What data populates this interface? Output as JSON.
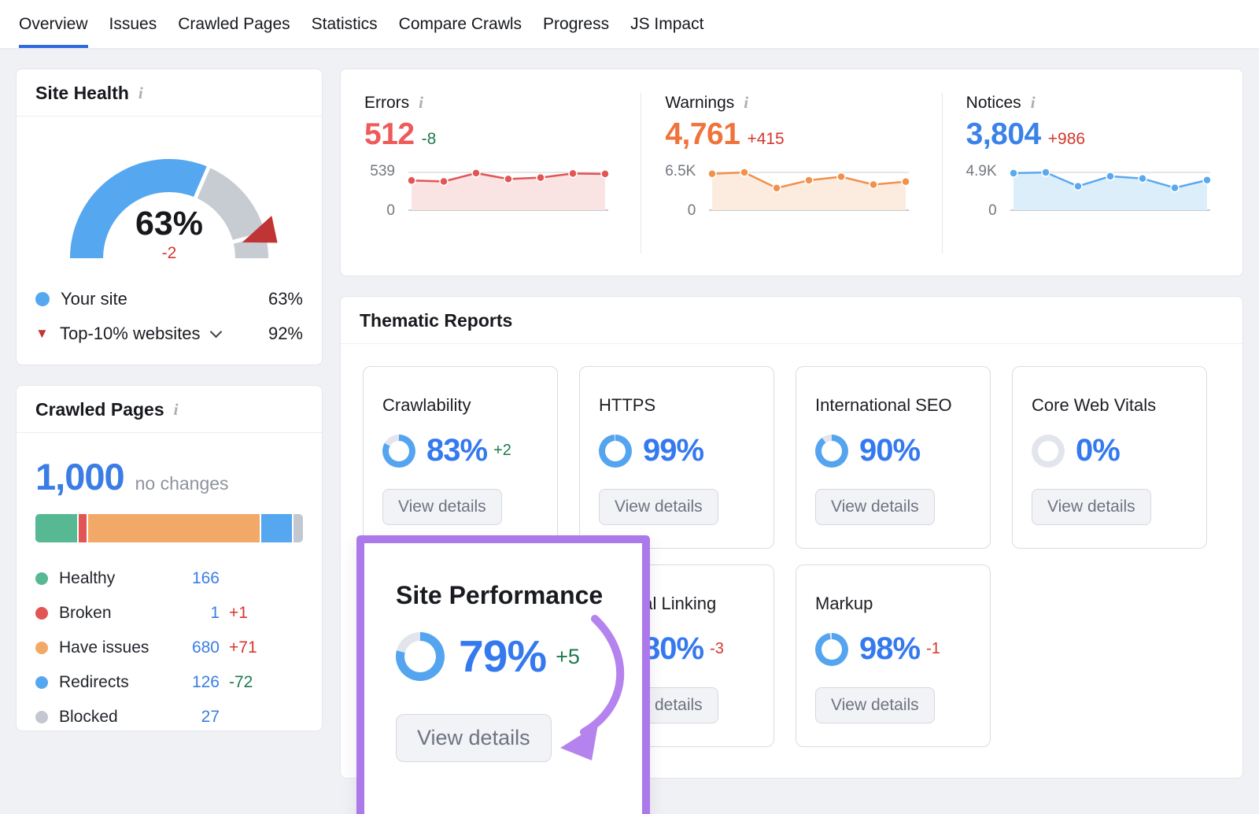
{
  "nav": {
    "tabs": [
      {
        "label": "Overview",
        "active": true
      },
      {
        "label": "Issues",
        "active": false
      },
      {
        "label": "Crawled Pages",
        "active": false
      },
      {
        "label": "Statistics",
        "active": false
      },
      {
        "label": "Compare Crawls",
        "active": false
      },
      {
        "label": "Progress",
        "active": false
      },
      {
        "label": "JS Impact",
        "active": false
      }
    ]
  },
  "site_health": {
    "title": "Site Health",
    "score": "63%",
    "delta": "-2",
    "legend": [
      {
        "label": "Your site",
        "value": "63%",
        "color": "#55a7f0"
      },
      {
        "label": "Top-10% websites",
        "value": "92%",
        "color": "#bf3535"
      }
    ]
  },
  "summary": {
    "errors": {
      "label": "Errors",
      "value": "512",
      "delta": "-8",
      "value_color": "#ee5a5a",
      "delta_color": "#1e7a4e",
      "ymax": "539",
      "ymin": "0"
    },
    "warnings": {
      "label": "Warnings",
      "value": "4,761",
      "delta": "+415",
      "value_color": "#f0733c",
      "delta_color": "#d4372e",
      "ymax": "6.5K",
      "ymin": "0"
    },
    "notices": {
      "label": "Notices",
      "value": "3,804",
      "delta": "+986",
      "value_color": "#3b82e8",
      "delta_color": "#d4372e",
      "ymax": "4.9K",
      "ymin": "0"
    }
  },
  "crawled_pages": {
    "title": "Crawled Pages",
    "total": "1,000",
    "total_note": "no changes",
    "legend": [
      {
        "label": "Healthy",
        "value": "166",
        "delta": "",
        "delta_color": "#1e7a4e",
        "color": "#57b894"
      },
      {
        "label": "Broken",
        "value": "1",
        "delta": "+1",
        "delta_color": "#d4372e",
        "color": "#e25555"
      },
      {
        "label": "Have issues",
        "value": "680",
        "delta": "+71",
        "delta_color": "#d4372e",
        "color": "#f2a968"
      },
      {
        "label": "Redirects",
        "value": "126",
        "delta": "-72",
        "delta_color": "#1e7a4e",
        "color": "#55a7f0"
      },
      {
        "label": "Blocked",
        "value": "27",
        "delta": "",
        "delta_color": "#1e7a4e",
        "color": "#c3c8d0"
      }
    ]
  },
  "thematic": {
    "title": "Thematic Reports",
    "view_details": "View details",
    "cards": [
      {
        "label": "Crawlability",
        "percent": "83%",
        "delta": "+2",
        "delta_color": "#1e7a4e",
        "donut": 83
      },
      {
        "label": "HTTPS",
        "percent": "99%",
        "delta": "",
        "delta_color": "#1e7a4e",
        "donut": 99
      },
      {
        "label": "International SEO",
        "percent": "90%",
        "delta": "",
        "delta_color": "#1e7a4e",
        "donut": 90
      },
      {
        "label": "Core Web Vitals",
        "percent": "0%",
        "delta": "",
        "delta_color": "#1e7a4e",
        "donut": 0
      },
      {
        "label": "Internal Linking",
        "percent": "80%",
        "delta": "-3",
        "delta_color": "#d4372e",
        "donut": 80
      },
      {
        "label": "Markup",
        "percent": "98%",
        "delta": "-1",
        "delta_color": "#d4372e",
        "donut": 98
      }
    ],
    "highlight": {
      "label": "Site Performance",
      "percent": "79%",
      "delta": "+5",
      "delta_color": "#1e7a4e",
      "donut": 79,
      "button": "View details",
      "accent": "#ab79e9"
    }
  },
  "chart_data": [
    {
      "id": "site_health_gauge",
      "type": "gauge",
      "unit": "%",
      "value": 63,
      "delta": -2,
      "benchmark_marker": 92,
      "series": [
        {
          "name": "Your site",
          "value": 63
        },
        {
          "name": "Top-10% websites",
          "value": 92
        }
      ],
      "arc_color": "#55a7f0",
      "track_color": "#c7ccd3",
      "marker_color": "#bf3535"
    },
    {
      "id": "errors_trend",
      "type": "area",
      "title": "Errors",
      "current": 512,
      "delta": -8,
      "ylim": [
        0,
        539
      ],
      "ymax_label": "539",
      "values": [
        425,
        410,
        529,
        445,
        465,
        523,
        518
      ],
      "line_color": "#e25555",
      "fill_color": "#fae3e3"
    },
    {
      "id": "warnings_trend",
      "type": "area",
      "title": "Warnings",
      "current": 4761,
      "delta": 415,
      "ylim": [
        0,
        6500
      ],
      "ymax_label": "6.5K",
      "values": [
        6250,
        6500,
        3800,
        5150,
        5750,
        4400,
        4900
      ],
      "line_color": "#f0914d",
      "fill_color": "#fcecdf"
    },
    {
      "id": "notices_trend",
      "type": "area",
      "title": "Notices",
      "current": 3804,
      "delta": 986,
      "ylim": [
        0,
        4900
      ],
      "ymax_label": "4.9K",
      "values": [
        4800,
        4900,
        3100,
        4400,
        4100,
        2900,
        3900
      ],
      "line_color": "#5aa9f0",
      "fill_color": "#ddeefb"
    },
    {
      "id": "crawled_pages_bar",
      "type": "stacked-bar",
      "total": 1000,
      "segments": [
        {
          "label": "Healthy",
          "value": 166,
          "color": "#57b894",
          "width_pct": 15.8
        },
        {
          "label": "Broken",
          "value": 1,
          "color": "#e25555",
          "width_pct": 3.0
        },
        {
          "label": "Have issues",
          "value": 680,
          "color": "#f2a968",
          "width_pct": 64.7
        },
        {
          "label": "Redirects",
          "value": 126,
          "color": "#55a7f0",
          "width_pct": 11.5
        },
        {
          "label": "Blocked",
          "value": 27,
          "color": "#c3c8d0",
          "width_pct": 3.5
        }
      ]
    },
    {
      "id": "thematic_donuts",
      "type": "donut",
      "ring_color": "#54a4ef",
      "track_color": "#e2e5eb",
      "items": [
        {
          "label": "Crawlability",
          "percent": 83
        },
        {
          "label": "HTTPS",
          "percent": 99
        },
        {
          "label": "International SEO",
          "percent": 90
        },
        {
          "label": "Core Web Vitals",
          "percent": 0
        },
        {
          "label": "Site Performance",
          "percent": 79
        },
        {
          "label": "Internal Linking",
          "percent": 80
        },
        {
          "label": "Markup",
          "percent": 98
        }
      ]
    }
  ]
}
